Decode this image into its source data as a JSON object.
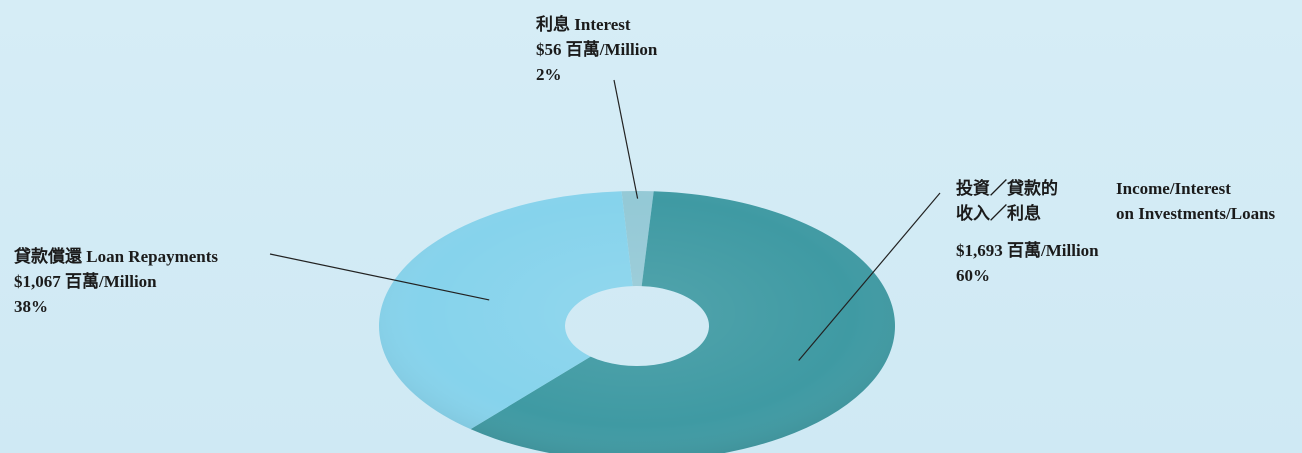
{
  "chart_data": {
    "type": "pie",
    "variant": "donut-3d",
    "title": "",
    "series": [
      {
        "name": "Income/Interest on Investments/Loans",
        "label_zh_line1": "投資／貸款的",
        "label_zh_line2": "收入／利息",
        "label_en_line1": "Income/Interest",
        "label_en_line2": "on Investments/Loans",
        "amount": "$1,693 百萬/Million",
        "value": 1693,
        "percent": "60%",
        "color": "#3f9aa3"
      },
      {
        "name": "Loan Repayments",
        "label": "貸款償還 Loan Repayments",
        "amount": "$1,067 百萬/Million",
        "value": 1067,
        "percent": "38%",
        "color": "#86d3ec"
      },
      {
        "name": "Interest",
        "label": "利息 Interest",
        "amount": "$56 百萬/Million",
        "value": 56,
        "percent": "2%",
        "color": "#94c9d6"
      }
    ]
  }
}
